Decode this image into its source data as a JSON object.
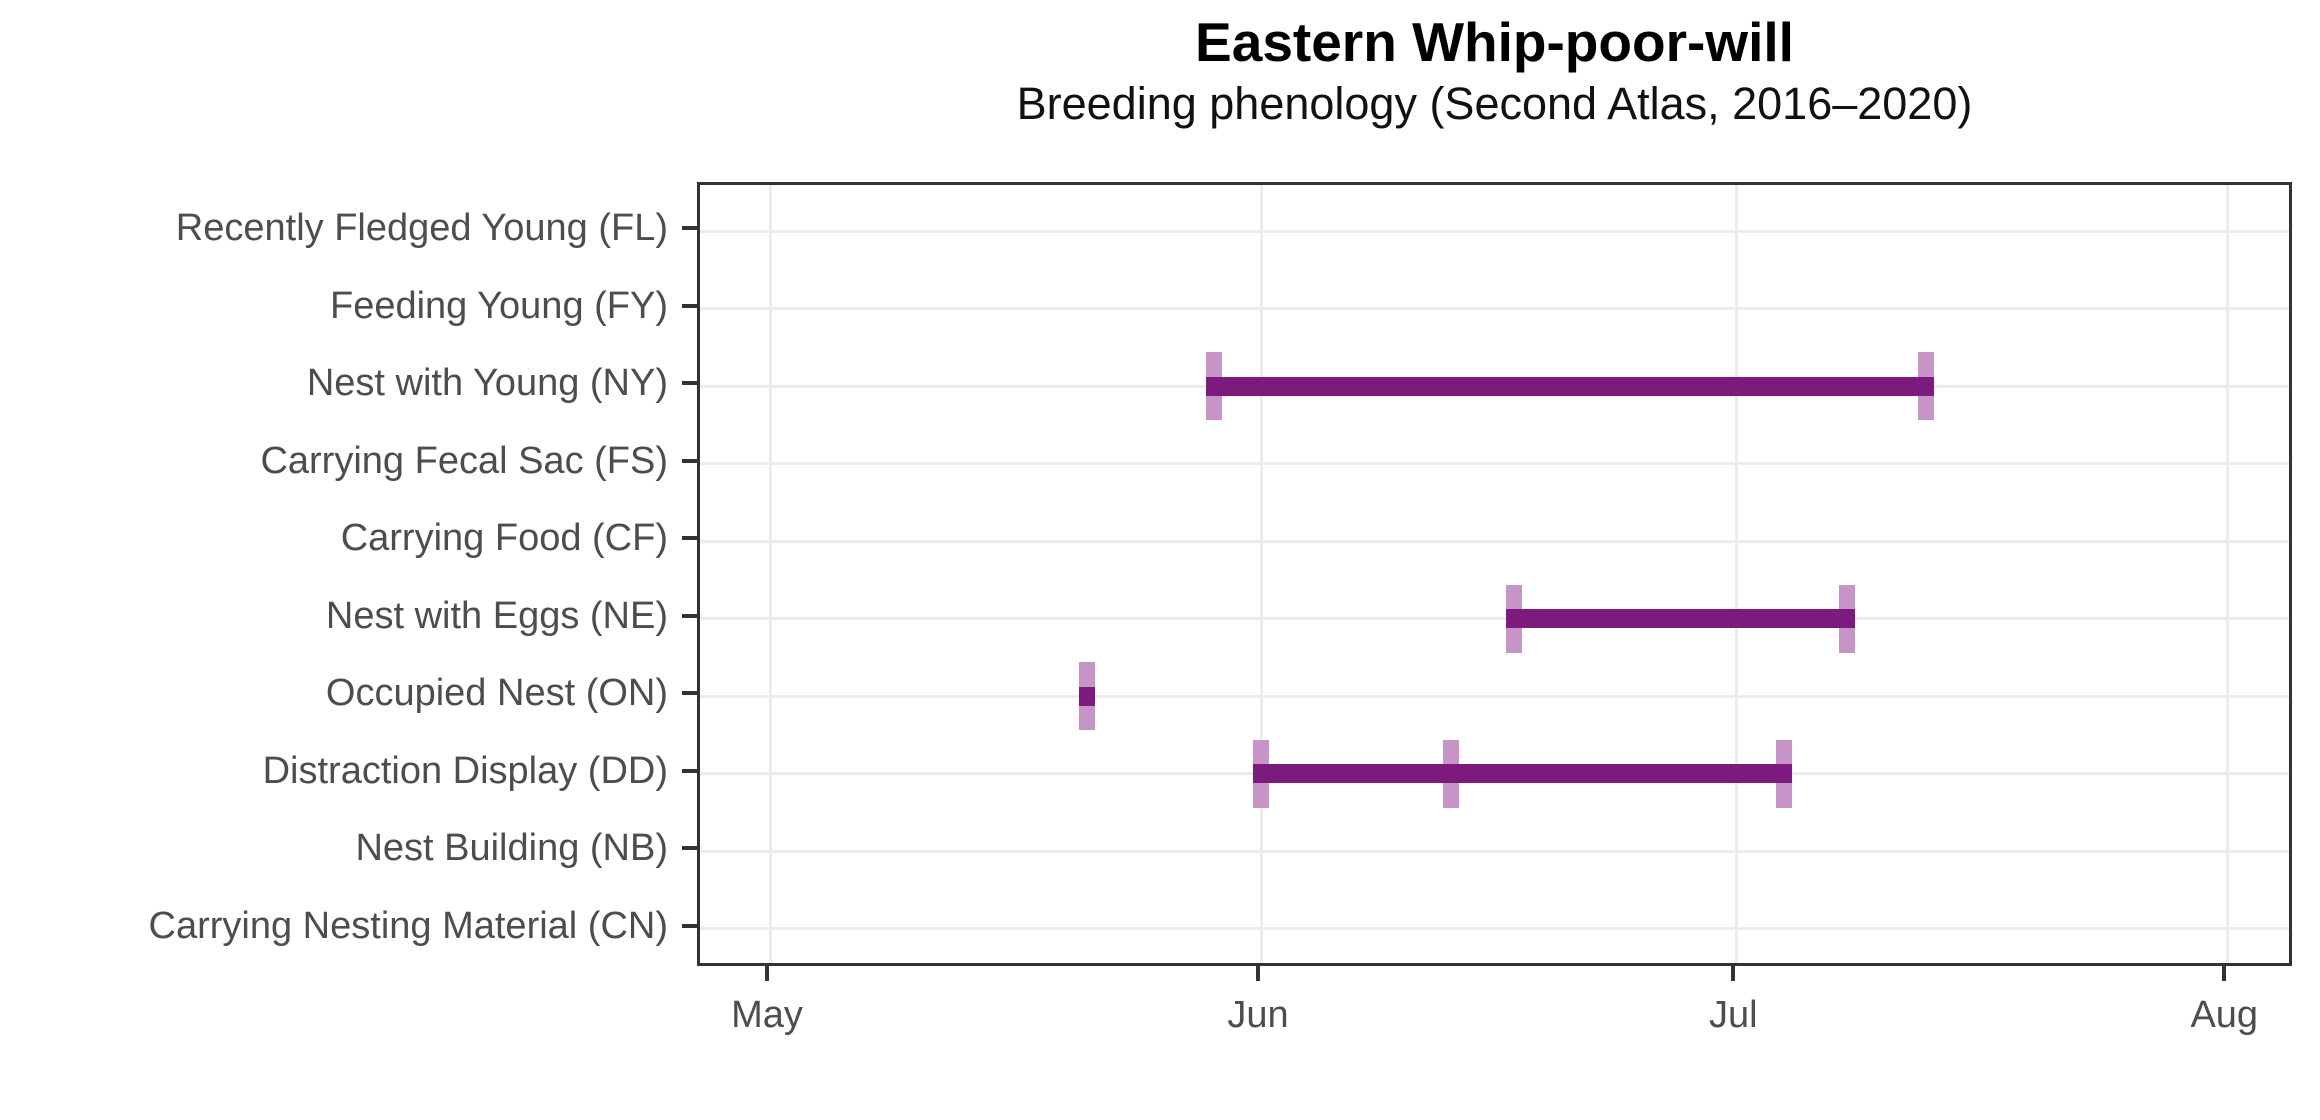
{
  "chart_data": {
    "type": "range_bar",
    "title": "Eastern Whip-poor-will",
    "subtitle": "Breeding phenology (Second Atlas, 2016–2020)",
    "y_categories": [
      "Recently Fledged Young (FL)",
      "Feeding Young (FY)",
      "Nest with Young (NY)",
      "Carrying Fecal Sac (FS)",
      "Carrying Food (CF)",
      "Nest with Eggs (NE)",
      "Occupied Nest (ON)",
      "Distraction Display (DD)",
      "Nest Building (NB)",
      "Carrying Nesting Material (CN)"
    ],
    "x_tick_labels": [
      "May",
      "Jun",
      "Jul",
      "Aug"
    ],
    "series": [
      {
        "category": "Nest with Young (NY)",
        "start": "May 29",
        "end": "Jul 13",
        "date_ticks": [
          "May 29",
          "Jul 13"
        ]
      },
      {
        "category": "Nest with Eggs (NE)",
        "start": "Jun 17",
        "end": "Jul 8",
        "date_ticks": [
          "Jun 17",
          "Jul 8"
        ]
      },
      {
        "category": "Occupied Nest (ON)",
        "start": "May 21",
        "end": "May 21",
        "date_ticks": [
          "May 21"
        ]
      },
      {
        "category": "Distraction Display (DD)",
        "start": "Jun 1",
        "end": "Jul 4",
        "date_ticks": [
          "Jun 1",
          "Jun 13",
          "Jul 4"
        ]
      }
    ],
    "colors": {
      "range_bar": "#7c1a7d",
      "date_tick": "#c794c8",
      "gridline": "#ececec",
      "axis_line": "#333333",
      "axis_text": "#4d4d4d",
      "title_text": "#000000"
    },
    "grid": "on",
    "legend": "none"
  }
}
